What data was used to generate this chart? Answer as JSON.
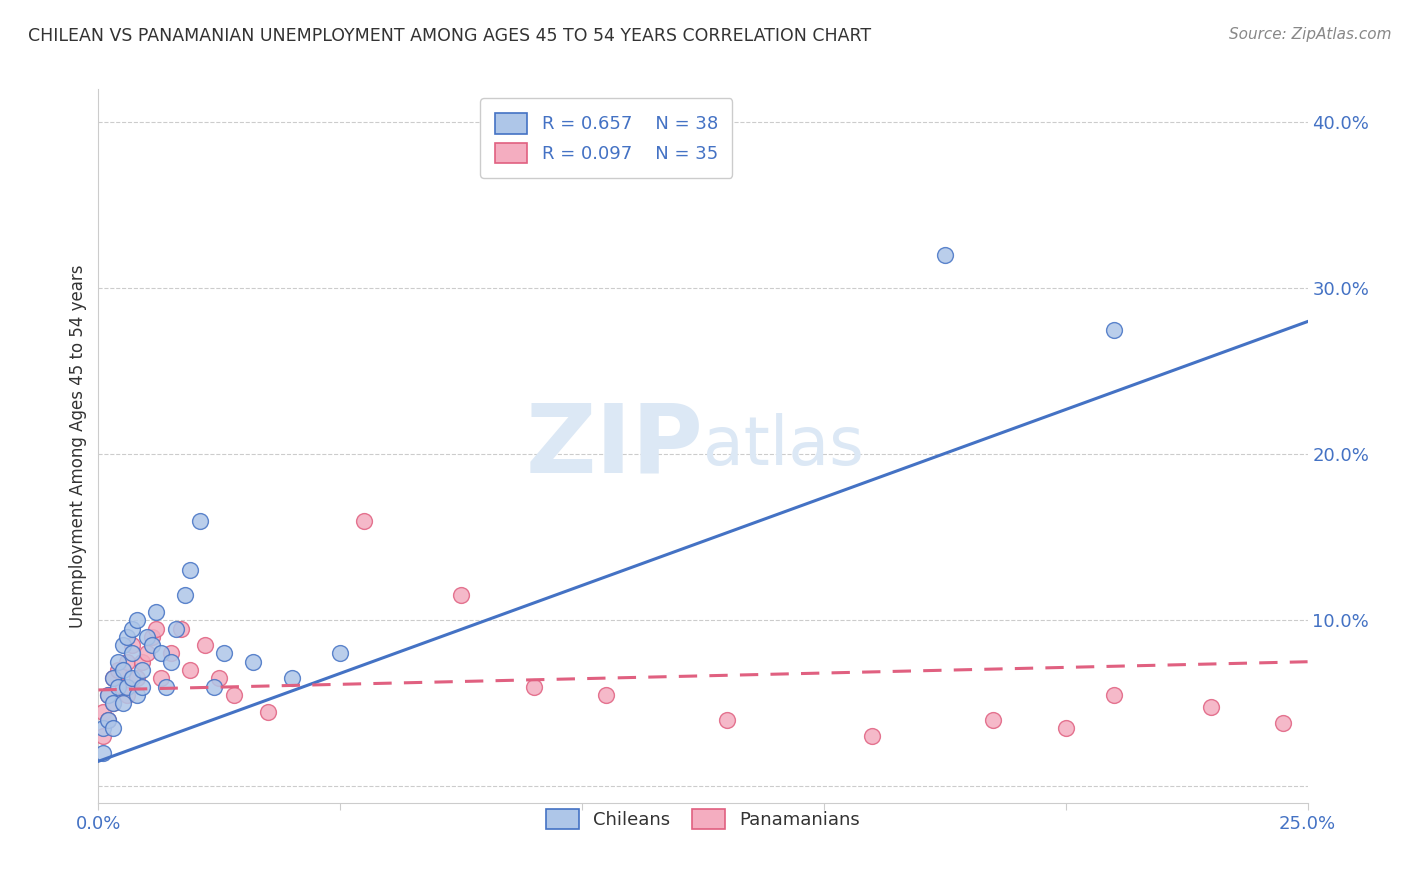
{
  "title": "CHILEAN VS PANAMANIAN UNEMPLOYMENT AMONG AGES 45 TO 54 YEARS CORRELATION CHART",
  "source": "Source: ZipAtlas.com",
  "ylabel": "Unemployment Among Ages 45 to 54 years",
  "xlim": [
    0.0,
    0.25
  ],
  "ylim": [
    -0.01,
    0.42
  ],
  "yticks": [
    0.0,
    0.1,
    0.2,
    0.3,
    0.4
  ],
  "ytick_labels": [
    "",
    "10.0%",
    "20.0%",
    "30.0%",
    "40.0%"
  ],
  "xtick_positions": [
    0.0,
    0.05,
    0.1,
    0.15,
    0.2,
    0.25
  ],
  "xtick_labels": [
    "0.0%",
    "",
    "",
    "",
    "",
    "25.0%"
  ],
  "legend_r1": "R = 0.657",
  "legend_n1": "N = 38",
  "legend_r2": "R = 0.097",
  "legend_n2": "N = 35",
  "chilean_color": "#aec6e8",
  "panamanian_color": "#f4adc0",
  "line_blue": "#4472c4",
  "line_pink": "#e06080",
  "watermark_zip": "ZIP",
  "watermark_atlas": "atlas",
  "watermark_color": "#dce8f5",
  "chileans_x": [
    0.001,
    0.001,
    0.002,
    0.002,
    0.003,
    0.003,
    0.003,
    0.004,
    0.004,
    0.005,
    0.005,
    0.005,
    0.006,
    0.006,
    0.007,
    0.007,
    0.007,
    0.008,
    0.008,
    0.009,
    0.009,
    0.01,
    0.011,
    0.012,
    0.013,
    0.014,
    0.015,
    0.016,
    0.018,
    0.019,
    0.021,
    0.024,
    0.026,
    0.032,
    0.04,
    0.05,
    0.175,
    0.21
  ],
  "chileans_y": [
    0.035,
    0.02,
    0.055,
    0.04,
    0.065,
    0.05,
    0.035,
    0.075,
    0.06,
    0.085,
    0.07,
    0.05,
    0.09,
    0.06,
    0.08,
    0.095,
    0.065,
    0.1,
    0.055,
    0.07,
    0.06,
    0.09,
    0.085,
    0.105,
    0.08,
    0.06,
    0.075,
    0.095,
    0.115,
    0.13,
    0.16,
    0.06,
    0.08,
    0.075,
    0.065,
    0.08,
    0.32,
    0.275
  ],
  "panamanians_x": [
    0.001,
    0.001,
    0.002,
    0.002,
    0.003,
    0.003,
    0.004,
    0.005,
    0.006,
    0.006,
    0.007,
    0.008,
    0.009,
    0.01,
    0.011,
    0.012,
    0.013,
    0.015,
    0.017,
    0.019,
    0.022,
    0.025,
    0.028,
    0.035,
    0.055,
    0.075,
    0.09,
    0.105,
    0.13,
    0.16,
    0.185,
    0.2,
    0.21,
    0.23,
    0.245
  ],
  "panamanians_y": [
    0.045,
    0.03,
    0.055,
    0.04,
    0.065,
    0.05,
    0.07,
    0.06,
    0.075,
    0.055,
    0.085,
    0.065,
    0.075,
    0.08,
    0.09,
    0.095,
    0.065,
    0.08,
    0.095,
    0.07,
    0.085,
    0.065,
    0.055,
    0.045,
    0.16,
    0.115,
    0.06,
    0.055,
    0.04,
    0.03,
    0.04,
    0.035,
    0.055,
    0.048,
    0.038
  ],
  "blue_line_x": [
    0.0,
    0.25
  ],
  "blue_line_y": [
    0.015,
    0.28
  ],
  "pink_line_x": [
    0.0,
    0.25
  ],
  "pink_line_y": [
    0.058,
    0.075
  ],
  "background_color": "#ffffff",
  "grid_color": "#cccccc",
  "grid_style": "--",
  "title_color": "#333333",
  "source_color": "#888888",
  "tick_color": "#4472c4"
}
